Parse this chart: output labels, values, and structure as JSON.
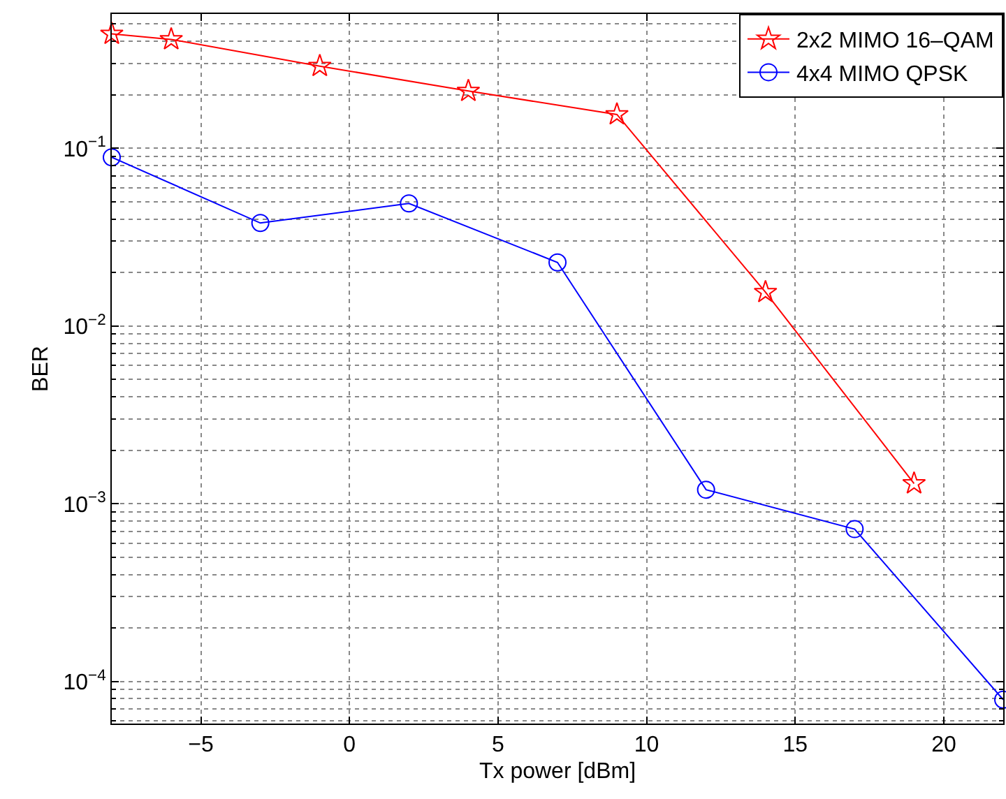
{
  "chart_data": {
    "type": "line",
    "xlabel": "Tx power [dBm]",
    "ylabel": "BER",
    "log": "y",
    "grid": true,
    "legend": "top right",
    "xlim": [
      -8,
      22
    ],
    "xticks": [
      {
        "value": -5,
        "label": "−5"
      },
      0,
      5,
      10,
      15,
      20
    ],
    "ylim": [
      5.8e-05,
      0.57
    ],
    "yticks": [
      {
        "value": 0.0001,
        "label": "10$^{−4}$"
      },
      {
        "value": 0.001,
        "label": "10$^{−3}$"
      },
      {
        "value": 0.01,
        "label": "10$^{−2}$"
      },
      {
        "value": 0.1,
        "label": "10$^{−1}$"
      }
    ],
    "series": [
      {
        "name": "2x2 MIMO 16–QAM",
        "color": "#ff0000",
        "marker": "star",
        "x": [
          -8,
          -6,
          -1,
          4,
          9,
          14,
          19
        ],
        "values": [
          0.44,
          0.41,
          0.29,
          0.21,
          0.155,
          0.0155,
          0.0013
        ]
      },
      {
        "name": "4x4 MIMO QPSK",
        "color": "#0000ff",
        "marker": "circle",
        "x": [
          -8,
          -3,
          2,
          7,
          12,
          17,
          22
        ],
        "values": [
          0.089,
          0.038,
          0.049,
          0.0228,
          0.0012,
          0.00072,
          7.9e-05
        ]
      }
    ]
  }
}
